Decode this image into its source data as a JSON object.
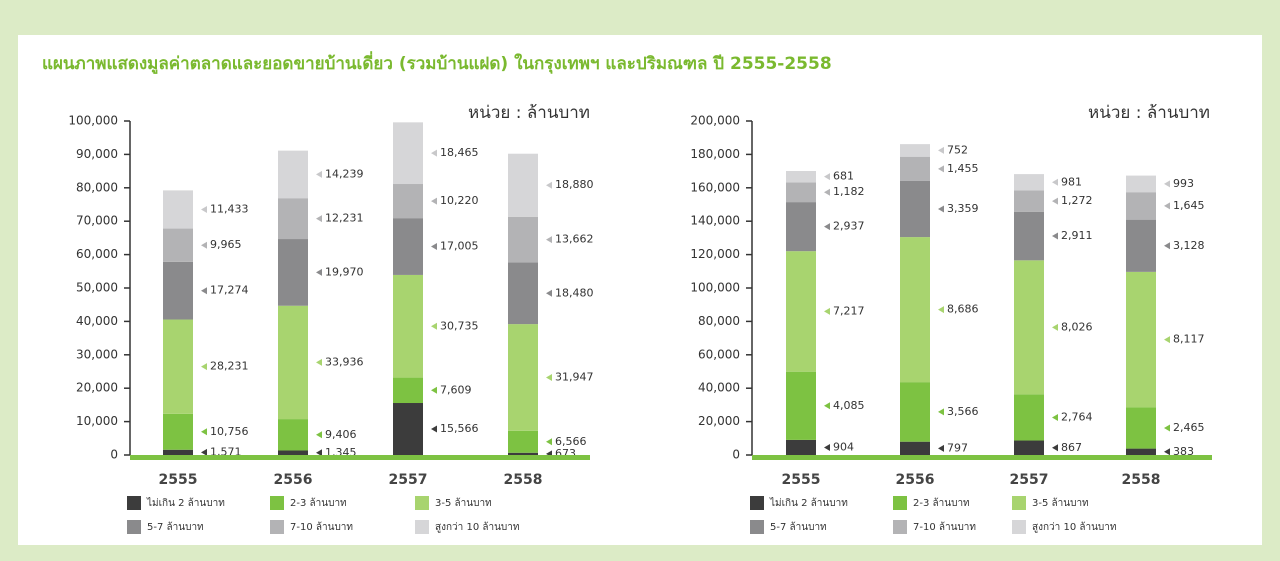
{
  "title": "แผนภาพแสดงมูลค่าตลาดและยอดขายบ้านเดี่ยว (รวมบ้านแฝด) ในกรุงเทพฯ และปริมณฑล ปี  2555-2558",
  "chart_data": [
    {
      "type": "bar",
      "stacked": true,
      "unit_label": "หน่วย : ล้านบาท",
      "categories": [
        "2555",
        "2556",
        "2557",
        "2558"
      ],
      "ylim": [
        0,
        100000
      ],
      "yticks": [
        0,
        {
          "value": 10000,
          "label": "10,000"
        },
        {
          "value": 20000,
          "label": "20,000"
        },
        {
          "value": 30000,
          "label": "30,000"
        },
        {
          "value": 40000,
          "label": "40,000"
        },
        {
          "value": 50000,
          "label": "50,000"
        },
        {
          "value": 60000,
          "label": "60,000"
        },
        {
          "value": 70000,
          "label": "70,000"
        },
        {
          "value": 80000,
          "label": "80,000"
        },
        {
          "value": 90000,
          "label": "90,000"
        },
        {
          "value": 100000,
          "label": "100,000"
        }
      ],
      "series": [
        {
          "name": "ไม่เกิน 2 ล้านบาท",
          "color": "#3c3c3c",
          "values": [
            1571,
            1345,
            15566,
            673
          ],
          "value_labels": [
            "1,571",
            "1,345",
            "15,566",
            "673"
          ]
        },
        {
          "name": "2-3 ล้านบาท",
          "color": "#7dc242",
          "values": [
            10756,
            9406,
            7609,
            6566
          ],
          "value_labels": [
            "10,756",
            "9,406",
            "7,609",
            "6,566"
          ]
        },
        {
          "name": "3-5 ล้านบาท",
          "color": "#a8d46f",
          "values": [
            28231,
            33936,
            30735,
            31947
          ],
          "value_labels": [
            "28,231",
            "33,936",
            "30,735",
            "31,947"
          ]
        },
        {
          "name": "5-7 ล้านบาท",
          "color": "#8a8a8c",
          "values": [
            17274,
            19970,
            17005,
            18480
          ],
          "value_labels": [
            "17,274",
            "19,970",
            "17,005",
            "18,480"
          ]
        },
        {
          "name": "7-10 ล้านบาท",
          "color": "#b3b3b5",
          "values": [
            9965,
            12231,
            10220,
            13662
          ],
          "value_labels": [
            "9,965",
            "12,231",
            "10,220",
            "13,662"
          ]
        },
        {
          "name": "สูงกว่า 10 ล้านบาท",
          "color": "#d6d6d8",
          "values": [
            11433,
            14239,
            18465,
            18880
          ],
          "value_labels": [
            "11,433",
            "14,239",
            "18,465",
            "18,880"
          ]
        }
      ]
    },
    {
      "type": "bar",
      "stacked": true,
      "unit_label": "หน่วย : ล้านบาท",
      "categories": [
        "2555",
        "2556",
        "2557",
        "2558"
      ],
      "ylim": [
        0,
        200000
      ],
      "yticks": [
        0,
        {
          "value": 20000,
          "label": "20,000"
        },
        {
          "value": 40000,
          "label": "40,000"
        },
        {
          "value": 60000,
          "label": "60,000"
        },
        {
          "value": 80000,
          "label": "80,000"
        },
        {
          "value": 100000,
          "label": "100,000"
        },
        {
          "value": 120000,
          "label": "120,000"
        },
        {
          "value": 140000,
          "label": "140,000"
        },
        {
          "value": 160000,
          "label": "160,000"
        },
        {
          "value": 180000,
          "label": "180,000"
        },
        {
          "value": 200000,
          "label": "200,000"
        }
      ],
      "series": [
        {
          "name": "ไม่เกิน 2 ล้านบาท",
          "color": "#3c3c3c",
          "values": [
            9040,
            7970,
            8670,
            3830
          ],
          "value_labels": [
            "904",
            "797",
            "867",
            "383"
          ]
        },
        {
          "name": "2-3 ล้านบาท",
          "color": "#7dc242",
          "values": [
            40850,
            35660,
            27640,
            24650
          ],
          "value_labels": [
            "4,085",
            "3,566",
            "2,764",
            "2,465"
          ]
        },
        {
          "name": "3-5 ล้านบาท",
          "color": "#a8d46f",
          "values": [
            72170,
            86860,
            80260,
            81170
          ],
          "value_labels": [
            "7,217",
            "8,686",
            "8,026",
            "8,117"
          ]
        },
        {
          "name": "5-7 ล้านบาท",
          "color": "#8a8a8c",
          "values": [
            29370,
            33590,
            29110,
            31280
          ],
          "value_labels": [
            "2,937",
            "3,359",
            "2,911",
            "3,128"
          ]
        },
        {
          "name": "7-10 ล้านบาท",
          "color": "#b3b3b5",
          "values": [
            11820,
            14550,
            12720,
            16450
          ],
          "value_labels": [
            "1,182",
            "1,455",
            "1,272",
            "1,645"
          ]
        },
        {
          "name": "สูงกว่า 10 ล้านบาท",
          "color": "#d6d6d8",
          "values": [
            6810,
            7520,
            9810,
            9930
          ],
          "value_labels": [
            "681",
            "752",
            "981",
            "993"
          ]
        }
      ]
    }
  ]
}
